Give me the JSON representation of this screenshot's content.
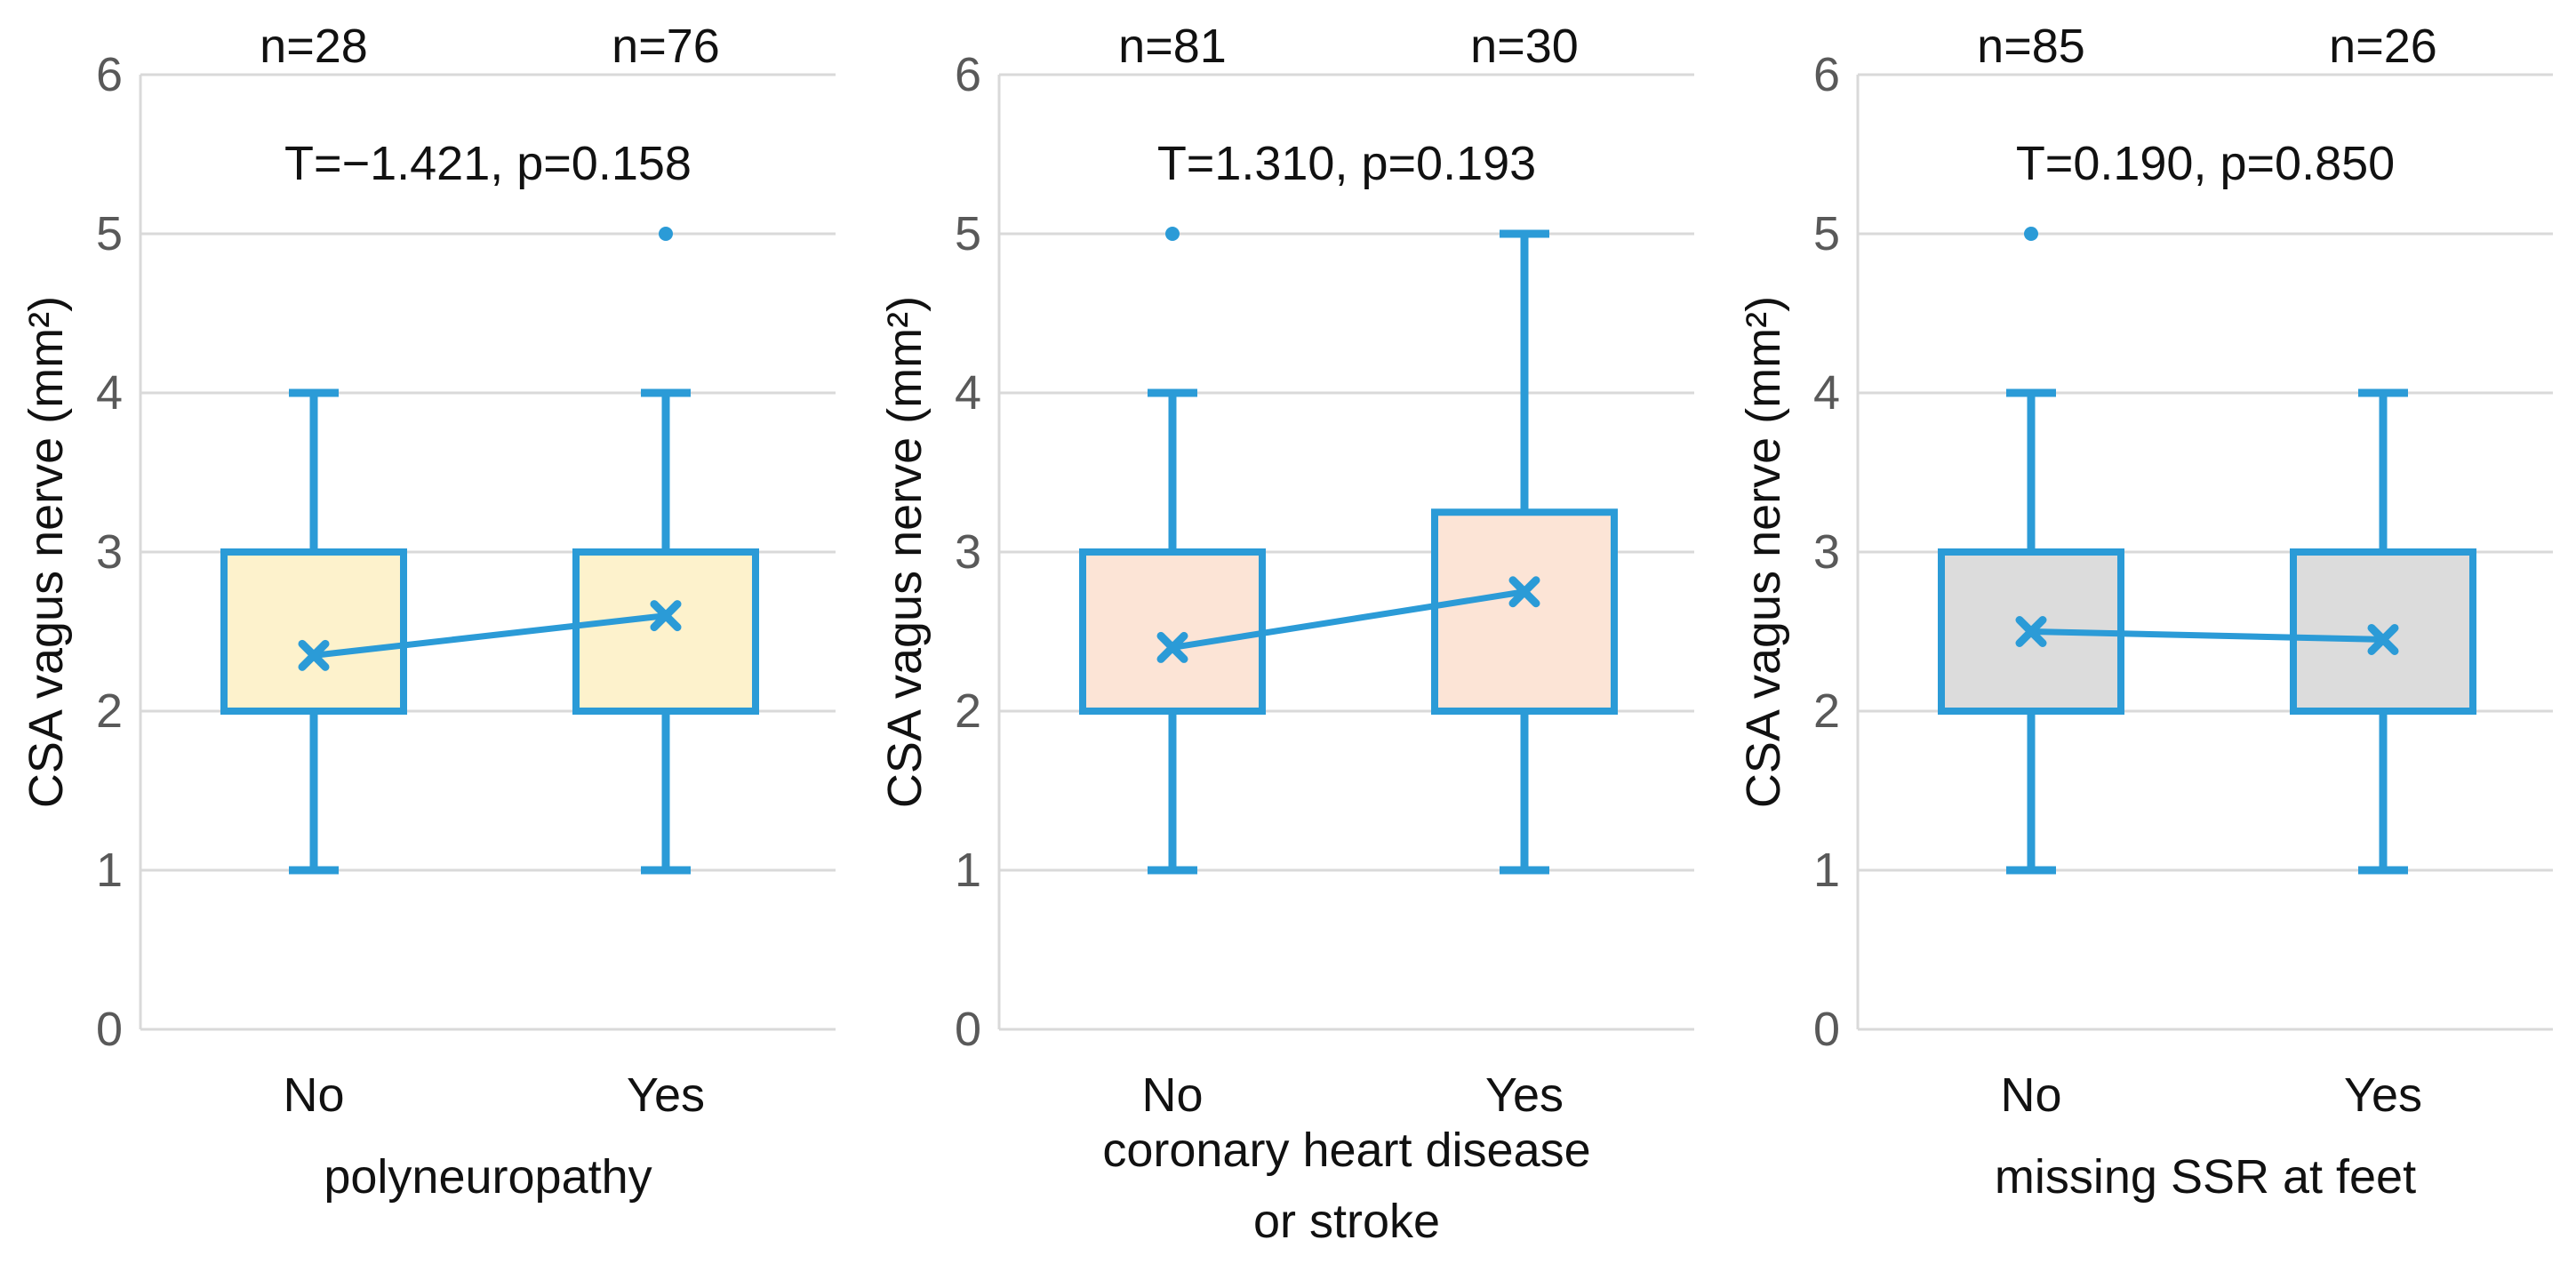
{
  "figure": {
    "background": "#ffffff",
    "description_texts": {
      "ylabel": "CSA vagus nerve (mm²)"
    }
  },
  "chart_data": {
    "type": "box",
    "ylabel": "CSA vagus nerve (mm²)",
    "ylim": [
      0,
      6
    ],
    "yticks": [
      0,
      1,
      2,
      3,
      4,
      5,
      6
    ],
    "grid": true,
    "legend": "none",
    "colors": {
      "stroke_blue": "#2B9BD7",
      "gridline": "#D9D9D9",
      "tick_label": "#595959",
      "text": "#111111",
      "background": "#ffffff",
      "panel_fills": [
        "#FDF2CC",
        "#FCE4D6",
        "#DCDCDC"
      ]
    },
    "panels": [
      {
        "id": "polyneuropathy",
        "xlabel_lines": [
          "polyneuropathy"
        ],
        "stats_label": "T=−1.421, p=0.158",
        "box_fill": "#FDF2CC",
        "categories": [
          "No",
          "Yes"
        ],
        "groups": [
          {
            "category": "No",
            "n_label": "n=28",
            "whisker_low": 1,
            "q1": 2,
            "q3": 3,
            "whisker_high": 4,
            "mean": 2.35,
            "outliers": []
          },
          {
            "category": "Yes",
            "n_label": "n=76",
            "whisker_low": 1,
            "q1": 2,
            "q3": 3,
            "whisker_high": 4,
            "mean": 2.6,
            "outliers": [
              5
            ]
          }
        ]
      },
      {
        "id": "coronary-heart-disease-or-stroke",
        "xlabel_lines": [
          "coronary heart disease",
          "or stroke"
        ],
        "stats_label": "T=1.310, p=0.193",
        "box_fill": "#FCE4D6",
        "categories": [
          "No",
          "Yes"
        ],
        "groups": [
          {
            "category": "No",
            "n_label": "n=81",
            "whisker_low": 1,
            "q1": 2,
            "q3": 3,
            "whisker_high": 4,
            "mean": 2.4,
            "outliers": [
              5
            ]
          },
          {
            "category": "Yes",
            "n_label": "n=30",
            "whisker_low": 1,
            "q1": 2,
            "q3": 3.25,
            "whisker_high": 5,
            "mean": 2.75,
            "outliers": []
          }
        ]
      },
      {
        "id": "missing-ssr-at-feet",
        "xlabel_lines": [
          "missing SSR at feet"
        ],
        "stats_label": "T=0.190, p=0.850",
        "box_fill": "#DCDCDC",
        "categories": [
          "No",
          "Yes"
        ],
        "groups": [
          {
            "category": "No",
            "n_label": "n=85",
            "whisker_low": 1,
            "q1": 2,
            "q3": 3,
            "whisker_high": 4,
            "mean": 2.5,
            "outliers": [
              5
            ]
          },
          {
            "category": "Yes",
            "n_label": "n=26",
            "whisker_low": 1,
            "q1": 2,
            "q3": 3,
            "whisker_high": 4,
            "mean": 2.45,
            "outliers": []
          }
        ]
      }
    ]
  }
}
